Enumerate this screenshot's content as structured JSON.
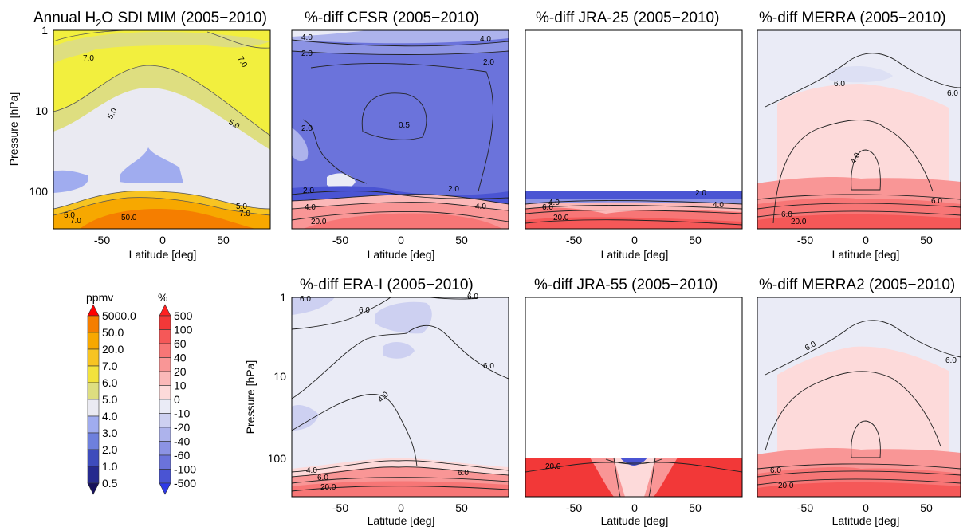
{
  "figure": {
    "panels": [
      {
        "id": "sdi",
        "title_main": "Annual H",
        "title_sub": "2",
        "title_rest": "O SDI MIM (2005−2010)",
        "ylabel": "Pressure [hPa]",
        "xlabel": "Latitude [deg]",
        "yticks": [
          "1",
          "10",
          "100"
        ],
        "xticks": [
          "-50",
          "0",
          "50"
        ],
        "contour_labels": [
          "7.0",
          "7.0",
          "5.0",
          "5.0",
          "5.0",
          "7.0",
          "5.0",
          "7.0",
          "50.0"
        ]
      },
      {
        "id": "cfsr",
        "title": "%-diff CFSR (2005−2010)",
        "xlabel": "Latitude [deg]",
        "xticks": [
          "-50",
          "0",
          "50"
        ],
        "contour_labels": [
          "4.0",
          "4.0",
          "2.0",
          "2.0",
          "0.5",
          "2.0",
          "2.0",
          "2.0",
          "4.0",
          "4.0",
          "20.0"
        ]
      },
      {
        "id": "jra25",
        "title": "%-diff JRA-25 (2005−2010)",
        "xlabel": "Latitude [deg]",
        "xticks": [
          "-50",
          "0",
          "50"
        ],
        "contour_labels": [
          "4.0",
          "6.0",
          "20.0",
          "2.0",
          "4.0"
        ]
      },
      {
        "id": "merra",
        "title": "%-diff MERRA (2005−2010)",
        "xlabel": "Latitude [deg]",
        "xticks": [
          "-50",
          "0",
          "50"
        ],
        "contour_labels": [
          "6.0",
          "6.0",
          "4.0",
          "6.0",
          "6.0",
          "20.0"
        ]
      },
      {
        "id": "erai",
        "title": "%-diff ERA-I (2005−2010)",
        "ylabel": "Pressure [hPa]",
        "xlabel": "Latitude [deg]",
        "yticks": [
          "1",
          "10",
          "100"
        ],
        "xticks": [
          "-50",
          "0",
          "50"
        ],
        "contour_labels": [
          "6.0",
          "6.0",
          "6.0",
          "6.0",
          "4.0",
          "4.0",
          "6.0",
          "6.0",
          "20.0"
        ]
      },
      {
        "id": "jra55",
        "title": "%-diff JRA-55 (2005−2010)",
        "xlabel": "Latitude [deg]",
        "xticks": [
          "-50",
          "0",
          "50"
        ],
        "contour_labels": [
          "20.0"
        ]
      },
      {
        "id": "merra2",
        "title": "%-diff MERRA2 (2005−2010)",
        "xlabel": "Latitude [deg]",
        "xticks": [
          "-50",
          "0",
          "50"
        ],
        "contour_labels": [
          "6.0",
          "6.0",
          "6.0",
          "20.0"
        ]
      }
    ]
  },
  "colorbars": {
    "ppmv": {
      "title": "ppmv",
      "labels": [
        "5000.0",
        "50.0",
        "20.0",
        "7.0",
        "6.0",
        "5.0",
        "4.0",
        "3.0",
        "2.0",
        "1.0",
        "0.5"
      ],
      "colors": [
        "#ff0000",
        "#f57e00",
        "#f7a800",
        "#f7c422",
        "#f2e23c",
        "#dede80",
        "#eaeaf2",
        "#a0acef",
        "#6e80dd",
        "#3e4cbc",
        "#262a8e",
        "#16115c"
      ]
    },
    "percent": {
      "title": "%",
      "labels": [
        "500",
        "100",
        "60",
        "40",
        "20",
        "10",
        "0",
        "-10",
        "-20",
        "-40",
        "-60",
        "-100",
        "-500"
      ],
      "colors": [
        "#ff2020",
        "#f23838",
        "#f55858",
        "#f77676",
        "#f99696",
        "#fbb8b8",
        "#fddada",
        "#eaebf6",
        "#cdd0f1",
        "#adb3ec",
        "#8c93e4",
        "#6b73db",
        "#4a54d3",
        "#2f3ae8"
      ]
    }
  },
  "chart_data": [
    {
      "type": "heatmap",
      "title": "Annual H2O SDI MIM (2005−2010)",
      "xlabel": "Latitude [deg]",
      "ylabel": "Pressure [hPa]",
      "xlim": [
        -90,
        90
      ],
      "ylim": [
        300,
        1
      ],
      "yscale": "log",
      "units": "ppmv",
      "x": [
        -90,
        -60,
        -30,
        0,
        30,
        60,
        90
      ],
      "y": [
        1,
        2,
        5,
        10,
        20,
        50,
        100,
        200
      ],
      "values": [
        [
          7.0,
          7.0,
          7.0,
          7.0,
          7.0,
          7.0,
          7.0
        ],
        [
          7.0,
          7.0,
          6.0,
          6.0,
          6.0,
          7.0,
          7.0
        ],
        [
          6.0,
          6.0,
          5.0,
          5.0,
          5.0,
          6.0,
          6.0
        ],
        [
          5.0,
          5.0,
          5.0,
          4.5,
          5.0,
          5.0,
          6.0
        ],
        [
          5.0,
          5.0,
          5.0,
          4.5,
          5.0,
          5.0,
          5.0
        ],
        [
          4.0,
          4.0,
          4.0,
          5.0,
          5.0,
          5.0,
          5.0
        ],
        [
          5.0,
          5.0,
          5.0,
          6.0,
          5.0,
          5.0,
          5.0
        ],
        [
          20.0,
          50.0,
          50.0,
          50.0,
          50.0,
          20.0,
          20.0
        ]
      ]
    },
    {
      "type": "heatmap",
      "title": "%-diff CFSR (2005−2010)",
      "xlabel": "Latitude [deg]",
      "xlim": [
        -90,
        90
      ],
      "ylim": [
        300,
        1
      ],
      "yscale": "log",
      "units": "%",
      "x": [
        -90,
        -60,
        -30,
        0,
        30,
        60,
        90
      ],
      "y": [
        1,
        2,
        5,
        10,
        20,
        50,
        100,
        200
      ],
      "values": [
        [
          -20,
          -40,
          -40,
          -40,
          -40,
          -40,
          -20
        ],
        [
          -60,
          -60,
          -60,
          -60,
          -60,
          -60,
          -60
        ],
        [
          -60,
          -60,
          -60,
          -60,
          -60,
          -60,
          -60
        ],
        [
          -60,
          -60,
          -60,
          -60,
          -60,
          -60,
          -60
        ],
        [
          -60,
          -60,
          -60,
          -60,
          -60,
          -60,
          -60
        ],
        [
          -60,
          -60,
          -60,
          -60,
          -60,
          -60,
          -60
        ],
        [
          -40,
          -20,
          -10,
          -60,
          -60,
          -40,
          -40
        ],
        [
          20,
          40,
          40,
          20,
          40,
          40,
          20
        ]
      ]
    },
    {
      "type": "heatmap",
      "title": "%-diff JRA-25 (2005−2010)",
      "xlabel": "Latitude [deg]",
      "xlim": [
        -90,
        90
      ],
      "ylim": [
        300,
        1
      ],
      "yscale": "log",
      "units": "%",
      "x": [
        -90,
        -60,
        -30,
        0,
        30,
        60,
        90
      ],
      "y": [
        100,
        150,
        200,
        300
      ],
      "values": [
        [
          -60,
          -60,
          -60,
          -60,
          -60,
          -60,
          -60
        ],
        [
          20,
          10,
          0,
          10,
          20,
          20,
          40
        ],
        [
          40,
          40,
          20,
          20,
          40,
          40,
          40
        ],
        [
          40,
          40,
          40,
          40,
          40,
          40,
          40
        ]
      ]
    },
    {
      "type": "heatmap",
      "title": "%-diff MERRA (2005−2010)",
      "xlabel": "Latitude [deg]",
      "xlim": [
        -90,
        90
      ],
      "ylim": [
        300,
        1
      ],
      "yscale": "log",
      "units": "%",
      "x": [
        -90,
        -60,
        -30,
        0,
        30,
        60,
        90
      ],
      "y": [
        1,
        2,
        5,
        10,
        20,
        50,
        100,
        200
      ],
      "values": [
        [
          -10,
          -10,
          -10,
          -10,
          -10,
          -10,
          -10
        ],
        [
          -10,
          -10,
          -10,
          -10,
          -10,
          -10,
          -10
        ],
        [
          -10,
          10,
          10,
          0,
          10,
          10,
          -10
        ],
        [
          -10,
          10,
          10,
          10,
          10,
          10,
          -10
        ],
        [
          -10,
          10,
          10,
          10,
          10,
          10,
          -10
        ],
        [
          -10,
          10,
          10,
          10,
          10,
          10,
          -10
        ],
        [
          20,
          20,
          20,
          0,
          20,
          20,
          20
        ],
        [
          40,
          40,
          40,
          40,
          40,
          40,
          40
        ]
      ]
    },
    {
      "type": "heatmap",
      "title": "%-diff ERA-I (2005−2010)",
      "xlabel": "Latitude [deg]",
      "ylabel": "Pressure [hPa]",
      "xlim": [
        -90,
        90
      ],
      "ylim": [
        300,
        1
      ],
      "yscale": "log",
      "units": "%",
      "x": [
        -90,
        -60,
        -30,
        0,
        30,
        60,
        90
      ],
      "y": [
        1,
        2,
        5,
        10,
        20,
        50,
        100,
        200
      ],
      "values": [
        [
          -10,
          -10,
          -20,
          -20,
          -10,
          -10,
          -10
        ],
        [
          -10,
          -10,
          -10,
          -20,
          -10,
          -10,
          -10
        ],
        [
          -10,
          -10,
          -10,
          -10,
          -10,
          -10,
          -10
        ],
        [
          -10,
          -10,
          -10,
          -10,
          -10,
          -10,
          -10
        ],
        [
          -20,
          -10,
          -10,
          -10,
          -10,
          -10,
          -10
        ],
        [
          -20,
          -10,
          -10,
          -10,
          -10,
          -10,
          -10
        ],
        [
          20,
          10,
          10,
          0,
          10,
          10,
          20
        ],
        [
          40,
          40,
          40,
          40,
          40,
          40,
          40
        ]
      ]
    },
    {
      "type": "heatmap",
      "title": "%-diff JRA-55 (2005−2010)",
      "xlabel": "Latitude [deg]",
      "xlim": [
        -90,
        90
      ],
      "ylim": [
        300,
        1
      ],
      "yscale": "log",
      "units": "%",
      "x": [
        -90,
        -60,
        -30,
        0,
        30,
        60,
        90
      ],
      "y": [
        100,
        150,
        200,
        300
      ],
      "values": [
        [
          100,
          100,
          60,
          -60,
          60,
          100,
          100
        ],
        [
          100,
          100,
          40,
          10,
          40,
          100,
          100
        ],
        [
          100,
          100,
          60,
          20,
          60,
          100,
          100
        ],
        [
          100,
          100,
          100,
          60,
          100,
          100,
          100
        ]
      ]
    },
    {
      "type": "heatmap",
      "title": "%-diff MERRA2 (2005−2010)",
      "xlabel": "Latitude [deg]",
      "xlim": [
        -90,
        90
      ],
      "ylim": [
        300,
        1
      ],
      "yscale": "log",
      "units": "%",
      "x": [
        -90,
        -60,
        -30,
        0,
        30,
        60,
        90
      ],
      "y": [
        1,
        2,
        5,
        10,
        20,
        50,
        100,
        200
      ],
      "values": [
        [
          -10,
          -10,
          -10,
          -10,
          -10,
          -10,
          -10
        ],
        [
          -10,
          -10,
          -10,
          -10,
          -10,
          -10,
          -10
        ],
        [
          -10,
          10,
          10,
          10,
          10,
          10,
          -10
        ],
        [
          -10,
          10,
          10,
          10,
          10,
          10,
          -10
        ],
        [
          -10,
          10,
          10,
          10,
          10,
          10,
          -10
        ],
        [
          -10,
          10,
          10,
          10,
          10,
          10,
          -10
        ],
        [
          20,
          20,
          20,
          0,
          20,
          20,
          20
        ],
        [
          40,
          40,
          40,
          40,
          40,
          40,
          40
        ]
      ]
    }
  ]
}
